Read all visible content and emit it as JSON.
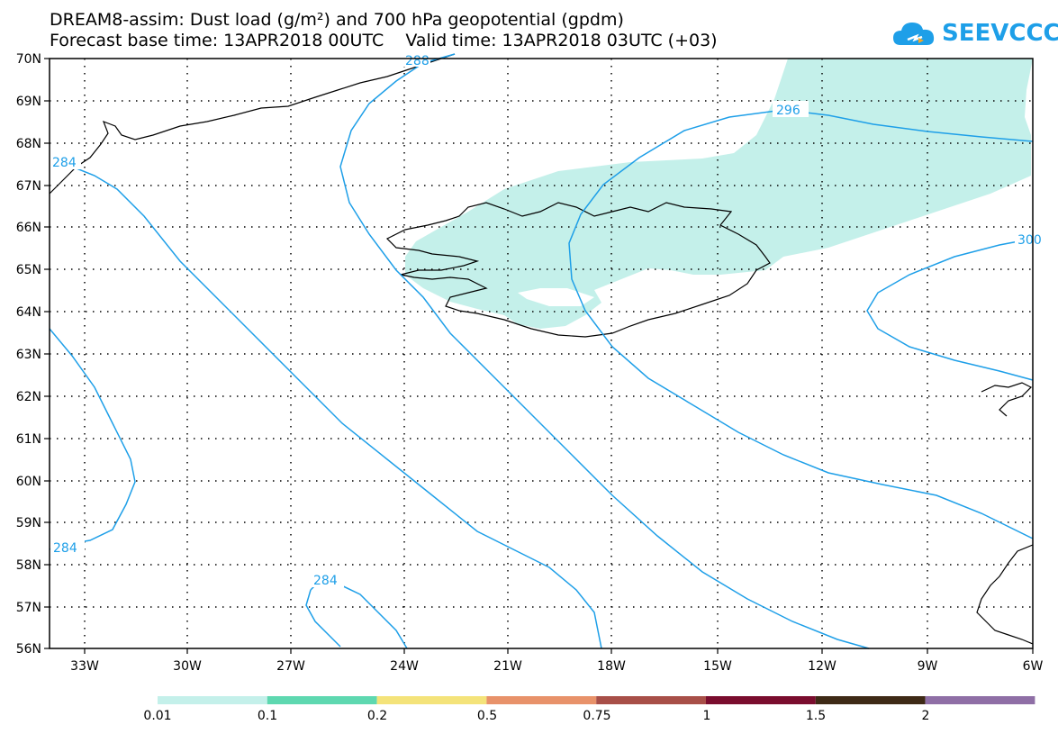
{
  "header": {
    "title_line1": "DREAM8-assim: Dust load (g/m²) and 700 hPa geopotential (gpdm)",
    "title_line2": "Forecast base time: 13APR2018 00UTC    Valid time: 13APR2018 03UTC (+03)",
    "logo_text": "SEEVCCC"
  },
  "map": {
    "lat_labels": [
      "70N",
      "69N",
      "68N",
      "67N",
      "66N",
      "65N",
      "64N",
      "63N",
      "62N",
      "61N",
      "60N",
      "59N",
      "58N",
      "57N",
      "56N"
    ],
    "lon_labels": [
      "33W",
      "30W",
      "27W",
      "24W",
      "21W",
      "18W",
      "15W",
      "12W",
      "9W",
      "6W"
    ],
    "contour_labels": [
      "284",
      "288",
      "296",
      "300",
      "284",
      "284"
    ],
    "colors": {
      "dust_fill": "#c4f0ea",
      "contour": "#1e9fe8",
      "coast": "#000000"
    }
  },
  "colorbar": {
    "labels": [
      "0.01",
      "0.1",
      "0.2",
      "0.5",
      "0.75",
      "1",
      "1.5",
      "2"
    ],
    "colors": [
      "#c4f0ea",
      "#5ed8b0",
      "#f4e37a",
      "#e8926a",
      "#a84f48",
      "#7a0d2e",
      "#3e2a16",
      "#8f6fa6"
    ]
  }
}
